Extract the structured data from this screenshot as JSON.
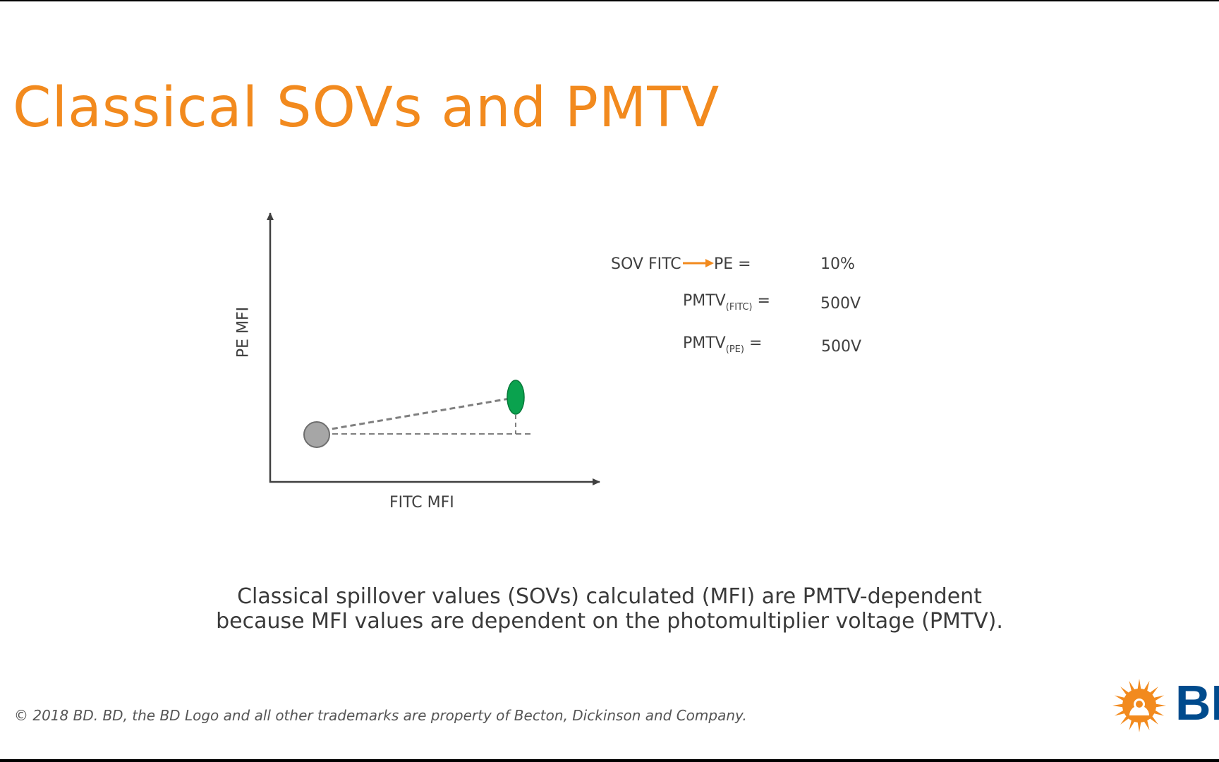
{
  "slide": {
    "title": "Classical SOVs and PMTV",
    "caption_line1": "Classical spillover values (SOVs) calculated (MFI) are PMTV-dependent",
    "caption_line2": "because MFI values are dependent on the photomultiplier voltage (PMTV).",
    "footer": "© 2018 BD. BD, the BD Logo and all other trademarks are property of Becton, Dickinson and Company."
  },
  "diagram": {
    "x_axis_label": "FITC MFI",
    "y_axis_label": "PE MFI",
    "colors": {
      "title": "#f28a1e",
      "arrow": "#f28a1e",
      "negative_population": "#a6a6a6",
      "positive_population": "#0aa24e",
      "axis": "#404040",
      "dashed_line": "#7f7f7f"
    },
    "populations": [
      "negative-population",
      "fitc-positive-population"
    ]
  },
  "equations": {
    "sov_prefix": "SOV FITC",
    "sov_suffix": "PE =",
    "sov_value": "10%",
    "pmtv_fitc_label": "PMTV",
    "pmtv_fitc_sub": "(FITC)",
    "pmtv_fitc_eq": " =",
    "pmtv_fitc_value": "500V",
    "pmtv_pe_label": "PMTV",
    "pmtv_pe_sub": "(PE)",
    "pmtv_pe_eq": " =",
    "pmtv_pe_value": "500V"
  },
  "logo": {
    "text": "BD",
    "icon": "bd-sunburst-icon"
  }
}
